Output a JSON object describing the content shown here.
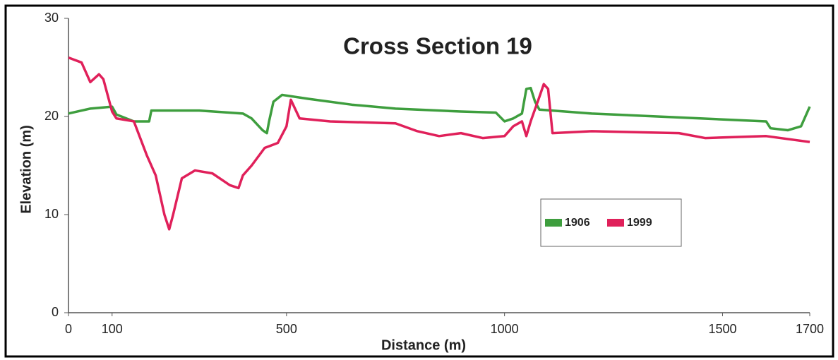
{
  "chart_data": {
    "type": "line",
    "title": "Cross Section 19",
    "x_label": "Distance (m)",
    "y_label": "Elevation (m)",
    "xlim": [
      0,
      1700
    ],
    "ylim": [
      0,
      30
    ],
    "xticks": [
      0,
      100,
      500,
      1000,
      1500,
      1700
    ],
    "yticks": [
      0,
      10,
      20,
      30
    ],
    "series": [
      {
        "name": "1906",
        "color": "#3e9e3e",
        "x": [
          0,
          50,
          100,
          110,
          150,
          185,
          190,
          300,
          400,
          420,
          445,
          455,
          460,
          470,
          490,
          550,
          650,
          750,
          900,
          980,
          1000,
          1020,
          1040,
          1050,
          1060,
          1070,
          1080,
          1200,
          1400,
          1600,
          1610,
          1650,
          1680,
          1700
        ],
        "values": [
          20.3,
          20.8,
          21,
          20.2,
          19.5,
          19.5,
          20.6,
          20.6,
          20.3,
          19.8,
          18.6,
          18.3,
          19.5,
          21.5,
          22.2,
          21.8,
          21.2,
          20.8,
          20.5,
          20.4,
          19.5,
          19.8,
          20.3,
          22.8,
          22.9,
          21.5,
          20.7,
          20.3,
          19.9,
          19.5,
          18.8,
          18.6,
          19,
          21
        ]
      },
      {
        "name": "1999",
        "color": "#e0205a",
        "x": [
          0,
          30,
          50,
          70,
          80,
          100,
          110,
          150,
          180,
          200,
          220,
          231,
          240,
          260,
          290,
          330,
          370,
          390,
          400,
          420,
          450,
          480,
          500,
          510,
          530,
          600,
          750,
          800,
          850,
          900,
          950,
          1000,
          1020,
          1040,
          1050,
          1060,
          1080,
          1090,
          1100,
          1110,
          1200,
          1400,
          1460,
          1600,
          1700
        ],
        "values": [
          26,
          25.5,
          23.5,
          24.3,
          23.8,
          20.5,
          19.8,
          19.5,
          16,
          14,
          10,
          8.5,
          10,
          13.7,
          14.5,
          14.2,
          13,
          12.7,
          14,
          15,
          16.8,
          17.3,
          19,
          21.7,
          19.8,
          19.5,
          19.3,
          18.5,
          18,
          18.3,
          17.8,
          18,
          19,
          19.5,
          18,
          19.5,
          22,
          23.3,
          22.8,
          18.3,
          18.5,
          18.3,
          17.8,
          18,
          17.4
        ]
      }
    ]
  }
}
